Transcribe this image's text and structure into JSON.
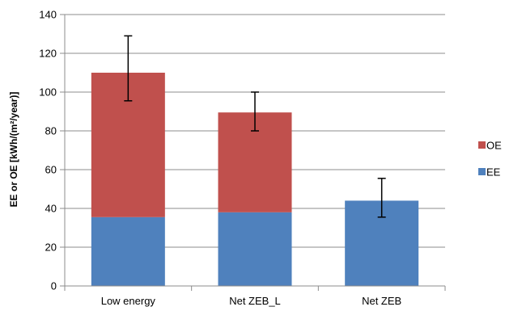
{
  "chart_data": {
    "type": "bar",
    "stacked": true,
    "categories": [
      "Low energy",
      "Net ZEB_L",
      "Net ZEB"
    ],
    "series": [
      {
        "name": "EE",
        "color": "#4f81bd",
        "values": [
          35.5,
          38,
          44
        ]
      },
      {
        "name": "OE",
        "color": "#c0504d",
        "values": [
          74.5,
          51.5,
          0
        ]
      }
    ],
    "error_bars": [
      {
        "center": 110,
        "low": 95.5,
        "high": 129
      },
      {
        "center": 89.5,
        "low": 80,
        "high": 100
      },
      {
        "center": 44,
        "low": 35.5,
        "high": 55.5
      }
    ],
    "ylabel": "EE or OE [kWh/(m²/year)]",
    "ylim": [
      0,
      140
    ],
    "yticks": [
      0,
      20,
      40,
      60,
      80,
      100,
      120,
      140
    ],
    "grid": true,
    "legend": {
      "placement": "right",
      "entries": [
        "OE",
        "EE"
      ]
    }
  }
}
